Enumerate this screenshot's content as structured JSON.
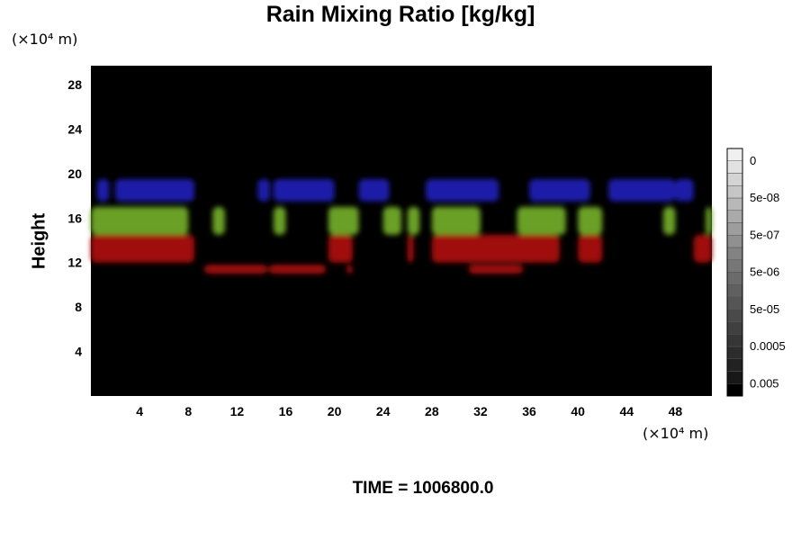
{
  "chart_data": {
    "type": "heatmap",
    "title": "Rain Mixing Ratio [kg/kg]",
    "ylabel": "Height",
    "y_unit": "(×10⁴ m)",
    "x_unit": "(×10⁴ m)",
    "footer": "TIME = 1006800.0",
    "xlim": [
      0,
      51
    ],
    "ylim": [
      0,
      29.7
    ],
    "x_ticks": [
      4,
      8,
      12,
      16,
      20,
      24,
      28,
      32,
      36,
      40,
      44,
      48
    ],
    "y_ticks": [
      4,
      8,
      12,
      16,
      20,
      24,
      28
    ],
    "background": "#000000",
    "colorbar": {
      "labels": [
        "0.005",
        "0.0005",
        "5e-05",
        "5e-06",
        "5e-07",
        "5e-08",
        "0"
      ],
      "colors": [
        "#000000",
        "#181818",
        "#222222",
        "#2c2c2c",
        "#363636",
        "#404040",
        "#4a4a4a",
        "#555555",
        "#606060",
        "#6b6b6b",
        "#777777",
        "#838383",
        "#909090",
        "#9d9d9d",
        "#aaaaaa",
        "#b8b8b8",
        "#c6c6c6",
        "#d4d4d4",
        "#e2e2e2",
        "#f0f0f0"
      ]
    },
    "layers": [
      {
        "name": "blue",
        "color": "#1a1aa8",
        "y_range": [
          17.5,
          19.5
        ],
        "x_ranges": [
          [
            0.5,
            1.5
          ],
          [
            2,
            8.5
          ],
          [
            13.7,
            14.7
          ],
          [
            15,
            20
          ],
          [
            22,
            24.5
          ],
          [
            27.5,
            33.5
          ],
          [
            36,
            41
          ],
          [
            42.5,
            48
          ],
          [
            48,
            49.5
          ]
        ]
      },
      {
        "name": "green",
        "color": "#6aa028",
        "y_range": [
          14.5,
          17
        ],
        "x_ranges": [
          [
            0,
            8
          ],
          [
            10,
            11
          ],
          [
            15,
            16
          ],
          [
            19.5,
            22
          ],
          [
            24,
            25.5
          ],
          [
            26,
            27
          ],
          [
            28,
            32
          ],
          [
            35,
            39
          ],
          [
            40,
            42
          ],
          [
            47,
            48
          ],
          [
            50.5,
            51
          ]
        ]
      },
      {
        "name": "red",
        "color": "#a01010",
        "y_range": [
          12,
          14.5
        ],
        "x_ranges": [
          [
            0,
            8.5
          ],
          [
            19.5,
            21.5
          ],
          [
            26,
            26.5
          ],
          [
            28,
            38.5
          ],
          [
            40,
            42
          ],
          [
            49.5,
            51
          ]
        ]
      },
      {
        "name": "red-low",
        "color": "#a01010",
        "y_range": [
          11,
          11.8
        ],
        "x_ranges": [
          [
            9.3,
            14.5
          ],
          [
            14.6,
            19.3
          ],
          [
            21,
            21.5
          ],
          [
            31,
            35.5
          ]
        ]
      }
    ]
  }
}
